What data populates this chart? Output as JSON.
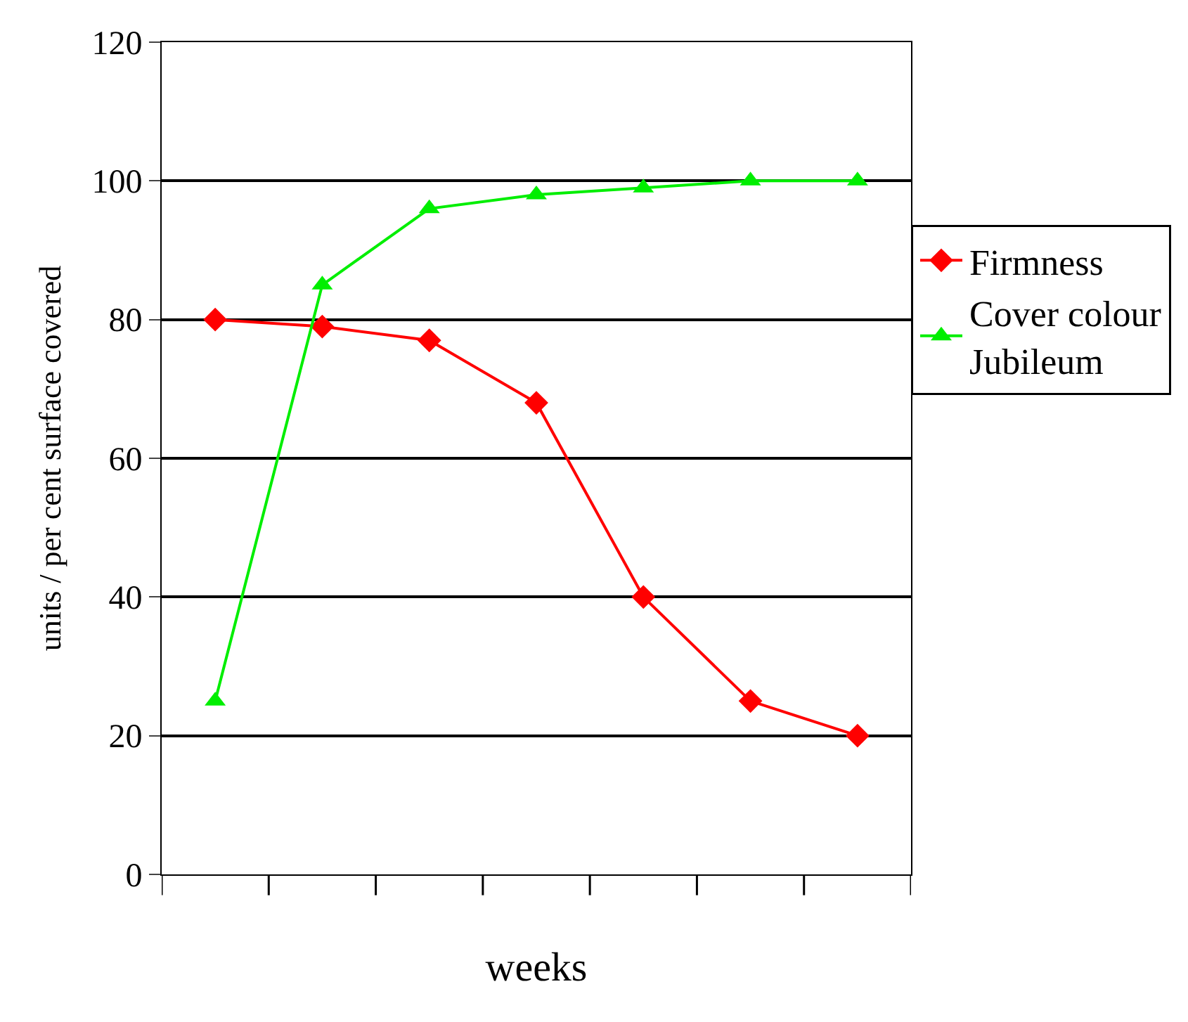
{
  "chart_data": {
    "type": "line",
    "xlabel": "weeks",
    "ylabel": "units / per cent surface covered",
    "categories": [
      null,
      null,
      null,
      null,
      null,
      null,
      null
    ],
    "series": [
      {
        "name": "Firmness",
        "color": "#ff0000",
        "marker": "diamond",
        "values": [
          80,
          79,
          77,
          68,
          40,
          25,
          20
        ]
      },
      {
        "name": "Cover colour Jubileum",
        "color": "#00ee00",
        "marker": "triangle",
        "values": [
          25,
          85,
          96,
          98,
          99,
          100,
          100
        ]
      }
    ],
    "ylim": [
      0,
      120
    ],
    "yticks": [
      0,
      20,
      40,
      60,
      80,
      100,
      120
    ],
    "grid": "y",
    "legend": "right",
    "tick_labels": "y",
    "line_style": "solid"
  }
}
